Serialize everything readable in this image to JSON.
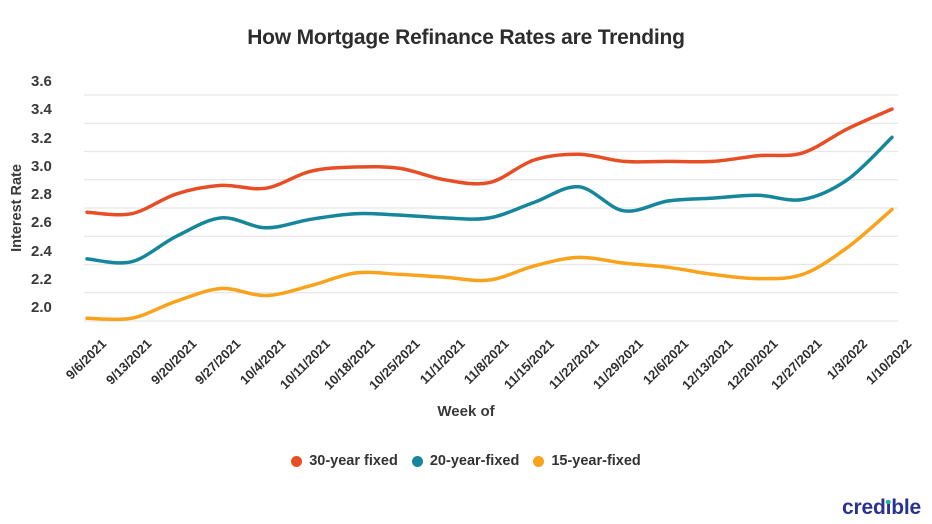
{
  "title": "How Mortgage Refinance Rates are Trending",
  "logo": {
    "part1": "cred",
    "part2": "ı",
    "part3": "ble",
    "dot_color": "#27b1a6",
    "text_color": "#2a3390"
  },
  "colors": {
    "grid": "#e6e6e6",
    "series_30yr": "#e84e25",
    "series_20yr": "#15869b",
    "series_15yr": "#f9a21b"
  },
  "chart_data": {
    "type": "line",
    "title": "How Mortgage Refinance Rates are Trending",
    "xlabel": "Week of",
    "ylabel": "Interest Rate",
    "ylim": [
      2.0,
      3.6
    ],
    "yticks": [
      "3.6",
      "3.4",
      "3.2",
      "3.0",
      "2.8",
      "2.6",
      "2.4",
      "2.2",
      "2.0"
    ],
    "grid": true,
    "legend_position": "bottom",
    "categories": [
      "9/6/2021",
      "9/13/2021",
      "9/20/2021",
      "9/27/2021",
      "10/4/2021",
      "10/11/2021",
      "10/18/2021",
      "10/25/2021",
      "11/1/2021",
      "11/8/2021",
      "11/15/2021",
      "11/22/2021",
      "11/29/2021",
      "12/6/2021",
      "12/13/2021",
      "12/20/2021",
      "12/27/2021",
      "1/3/2022",
      "1/10/2022"
    ],
    "series": [
      {
        "name": "30-year fixed",
        "color": "#e84e25",
        "values": [
          2.77,
          2.76,
          2.9,
          2.96,
          2.94,
          3.06,
          3.09,
          3.08,
          3.0,
          2.98,
          3.14,
          3.18,
          3.13,
          3.13,
          3.13,
          3.17,
          3.19,
          3.36,
          3.5
        ]
      },
      {
        "name": "20-year-fixed",
        "color": "#15869b",
        "values": [
          2.44,
          2.42,
          2.6,
          2.73,
          2.66,
          2.72,
          2.76,
          2.75,
          2.73,
          2.73,
          2.84,
          2.95,
          2.78,
          2.85,
          2.87,
          2.89,
          2.86,
          3.0,
          3.3
        ]
      },
      {
        "name": "15-year-fixed",
        "color": "#f9a21b",
        "values": [
          2.02,
          2.02,
          2.14,
          2.23,
          2.18,
          2.25,
          2.34,
          2.33,
          2.31,
          2.29,
          2.39,
          2.45,
          2.41,
          2.38,
          2.33,
          2.3,
          2.33,
          2.52,
          2.79
        ]
      }
    ]
  }
}
